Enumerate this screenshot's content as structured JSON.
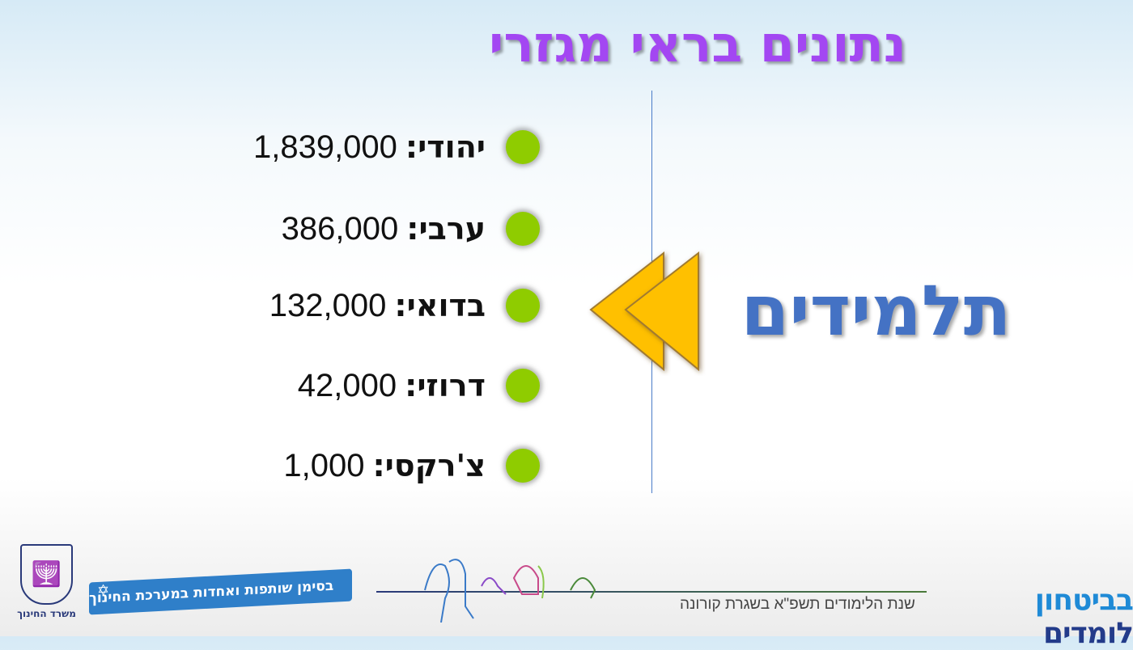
{
  "title": "נתונים בראי מגזרי",
  "main_label": "תלמידים",
  "items": [
    {
      "label": "יהודי:",
      "value": "1,839,000"
    },
    {
      "label": "ערבי:",
      "value": "386,000"
    },
    {
      "label": "בדואי:",
      "value": "132,000"
    },
    {
      "label": "דרוזי:",
      "value": "42,000"
    },
    {
      "label": "צ'רקסי:",
      "value": "1,000"
    }
  ],
  "colors": {
    "title": "#a347f2",
    "bullet": "#8fcc00",
    "main_label": "#4472c4",
    "arrow": "#ffc000"
  },
  "footer": {
    "ministry": "משרד החינוך",
    "banner": "בסימן שותפות ואחדות במערכת החינוך",
    "logo_a": "לומדים",
    "logo_b": "בביטחון",
    "subtitle": "שנת הלימודים תשפ\"א בשגרת קורונה"
  }
}
